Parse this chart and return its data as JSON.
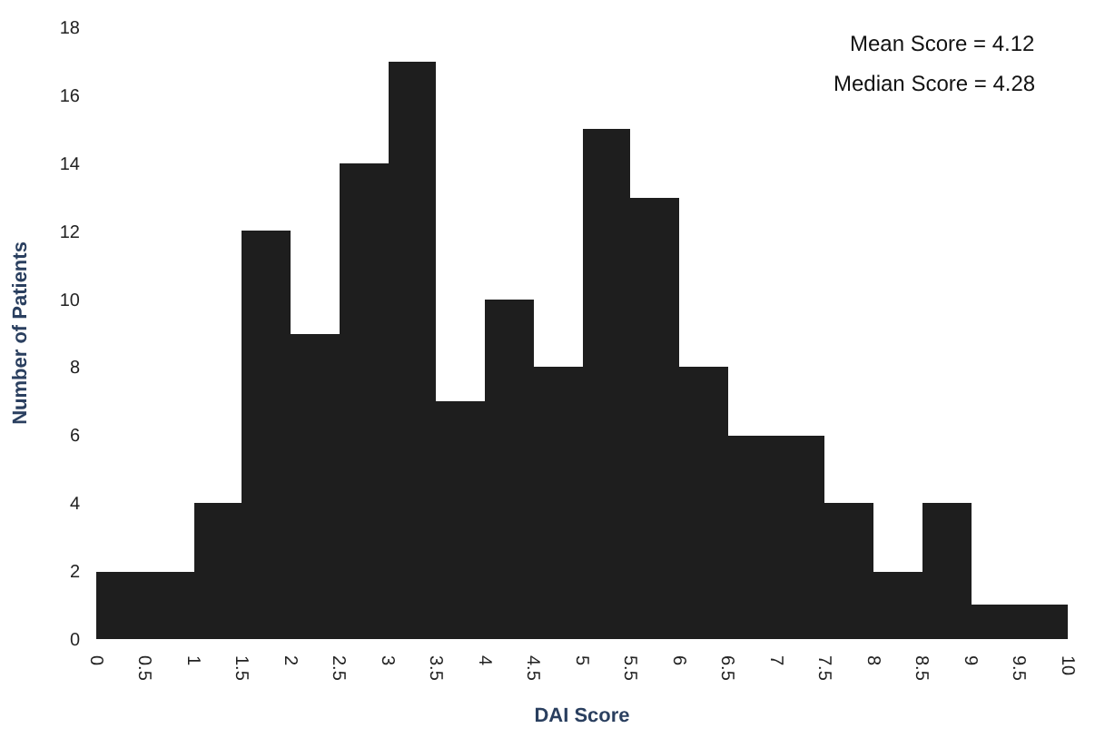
{
  "chart_data": {
    "type": "histogram",
    "xlabel": "DAI Score",
    "ylabel": "Number of Patients",
    "bins": [
      0,
      0.5,
      1,
      1.5,
      2,
      2.5,
      3,
      3.5,
      4,
      4.5,
      5,
      5.5,
      6,
      6.5,
      7,
      7.5,
      8,
      8.5,
      9,
      9.5,
      10
    ],
    "values": [
      2,
      2,
      4,
      12,
      9,
      14,
      17,
      7,
      10,
      8,
      15,
      13,
      8,
      6,
      6,
      4,
      2,
      4,
      1,
      1
    ],
    "color": "#1e1e1e",
    "xlim": [
      0,
      10
    ],
    "xticks": [
      0,
      0.5,
      1,
      1.5,
      2,
      2.5,
      3,
      3.5,
      4,
      4.5,
      5,
      5.5,
      6,
      6.5,
      7,
      7.5,
      8,
      8.5,
      9,
      9.5,
      10
    ],
    "ylim": [
      0,
      18
    ],
    "yticks": [
      0,
      2,
      4,
      6,
      8,
      10,
      12,
      14,
      16,
      18
    ],
    "annotations": [
      "Mean Score = 4.12",
      "Median Score = 4.28"
    ]
  }
}
